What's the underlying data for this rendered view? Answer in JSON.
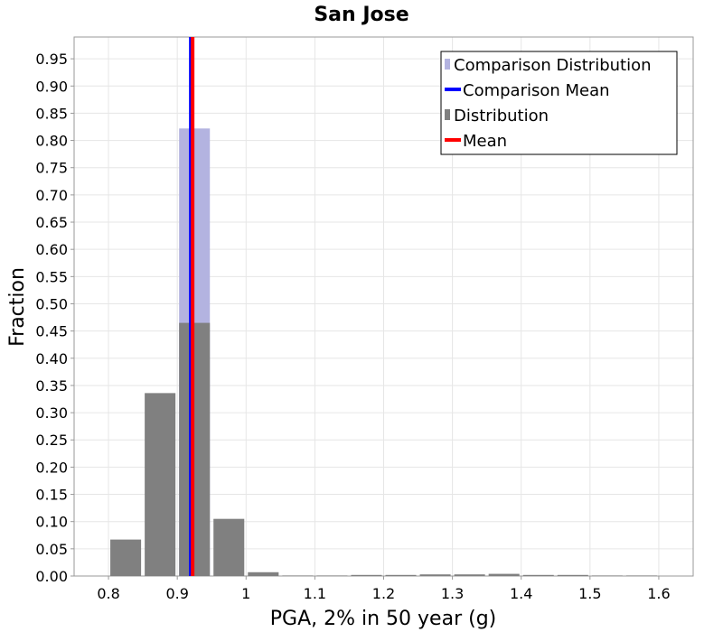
{
  "chart_data": {
    "type": "bar",
    "title": "San Jose",
    "xlabel": "PGA, 2% in 50 year (g)",
    "ylabel": "Fraction",
    "xlim": [
      0.75,
      1.65
    ],
    "ylim": [
      0,
      0.99
    ],
    "x_ticks": [
      "0.8",
      "0.9",
      "1",
      "1.1",
      "1.2",
      "1.3",
      "1.4",
      "1.5",
      "1.6"
    ],
    "y_ticks": [
      "0.00",
      "0.05",
      "0.10",
      "0.15",
      "0.20",
      "0.25",
      "0.30",
      "0.35",
      "0.40",
      "0.45",
      "0.50",
      "0.55",
      "0.60",
      "0.65",
      "0.70",
      "0.75",
      "0.80",
      "0.85",
      "0.90",
      "0.95"
    ],
    "grid": true,
    "legend_position": "top-right",
    "bin_width": 0.05,
    "bin_centers": [
      0.825,
      0.875,
      0.925,
      0.975,
      1.025,
      1.075,
      1.125,
      1.175,
      1.225,
      1.275,
      1.325,
      1.375,
      1.425,
      1.475,
      1.525,
      1.575
    ],
    "series": [
      {
        "name": "Comparison Distribution",
        "kind": "bar",
        "color": "#b3b3e0",
        "values": [
          0,
          0,
          0.822,
          0,
          0,
          0,
          0,
          0,
          0,
          0,
          0,
          0,
          0,
          0,
          0,
          0
        ]
      },
      {
        "name": "Comparison Mean",
        "kind": "vline",
        "color": "#0000ff",
        "value": 0.921
      },
      {
        "name": "Distribution",
        "kind": "bar",
        "color": "#808080",
        "values": [
          0.067,
          0.336,
          0.465,
          0.105,
          0.007,
          0.001,
          0.001,
          0.002,
          0.002,
          0.003,
          0.003,
          0.004,
          0.002,
          0.002,
          0.001,
          0.001
        ]
      },
      {
        "name": "Mean",
        "kind": "vline",
        "color": "#ff0000",
        "value": 0.921
      }
    ]
  }
}
